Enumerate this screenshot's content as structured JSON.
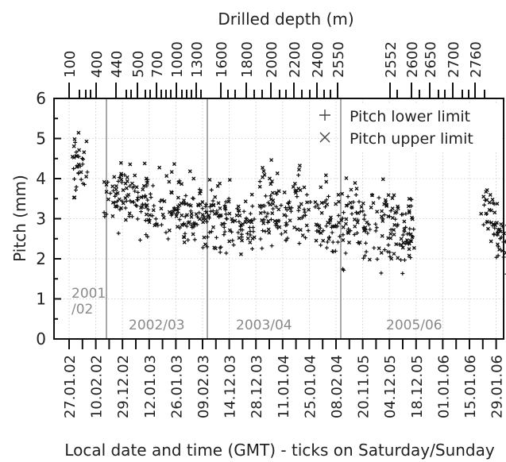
{
  "chart_data": {
    "type": "scatter",
    "title": "",
    "xlabel": "Local date and time (GMT) - ticks on Saturday/Sunday",
    "ylabel": "Pitch (mm)",
    "top_axis_label": "Drilled depth (m)",
    "ylim": [
      0,
      6
    ],
    "y_ticks": [
      "0",
      "1",
      "2",
      "3",
      "4",
      "5",
      "6"
    ],
    "grid": true,
    "legend_position": "top-right",
    "legend": [
      {
        "marker": "+",
        "label": "Pitch lower limit"
      },
      {
        "marker": "×",
        "label": "Pitch upper limit"
      }
    ],
    "date_tick_labels": [
      "27.01.02",
      "10.02.02",
      "29.12.02",
      "12.01.03",
      "26.01.03",
      "09.02.03",
      "14.12.03",
      "28.12.03",
      "11.01.04",
      "25.01.04",
      "08.02.04",
      "20.11.05",
      "04.12.05",
      "18.12.05",
      "01.01.06",
      "15.01.06",
      "29.01.06"
    ],
    "depth_tick_labels": [
      "100",
      "400",
      "440",
      "500",
      "700",
      "1000",
      "1300",
      "1600",
      "1800",
      "2000",
      "2200",
      "2400",
      "2550",
      "2552",
      "2600",
      "2650",
      "2700",
      "2760"
    ],
    "seasons": [
      "2001\n/02",
      "2002/03",
      "2003/04",
      "2005/06"
    ],
    "series": [
      {
        "name": "Pitch lower limit",
        "marker": "+",
        "segments": [
          {
            "season": "2001/02",
            "x": [
              0.1,
              0.7
            ],
            "mean": 4.2,
            "spread": 0.35
          },
          {
            "season": "2002/03",
            "x": [
              1.3,
              7.0
            ],
            "mean_start": 3.5,
            "mean_end": 2.7,
            "spread": 0.35
          },
          {
            "season": "2003/04",
            "x": [
              7.1,
              13.0
            ],
            "mean_start": 3.2,
            "mean_end": 2.6,
            "spread": 0.45
          },
          {
            "season": "2005/06",
            "x": [
              15.4,
              16.8
            ],
            "mean_start": 3.3,
            "mean_end": 1.9,
            "spread": 0.3
          }
        ]
      },
      {
        "name": "Pitch upper limit",
        "marker": "×",
        "segments": [
          {
            "season": "2001/02",
            "x": [
              0.1,
              0.7
            ],
            "mean": 4.4,
            "spread": 0.4
          },
          {
            "season": "2002/03",
            "x": [
              1.3,
              7.0
            ],
            "mean_start": 3.7,
            "mean_end": 2.9,
            "spread": 0.4
          },
          {
            "season": "2003/04",
            "x": [
              7.1,
              13.0
            ],
            "mean_start": 3.4,
            "mean_end": 2.7,
            "spread": 0.5
          },
          {
            "season": "2005/06",
            "x": [
              15.4,
              16.8
            ],
            "mean_start": 3.5,
            "mean_end": 2.0,
            "spread": 0.35
          }
        ]
      }
    ]
  }
}
